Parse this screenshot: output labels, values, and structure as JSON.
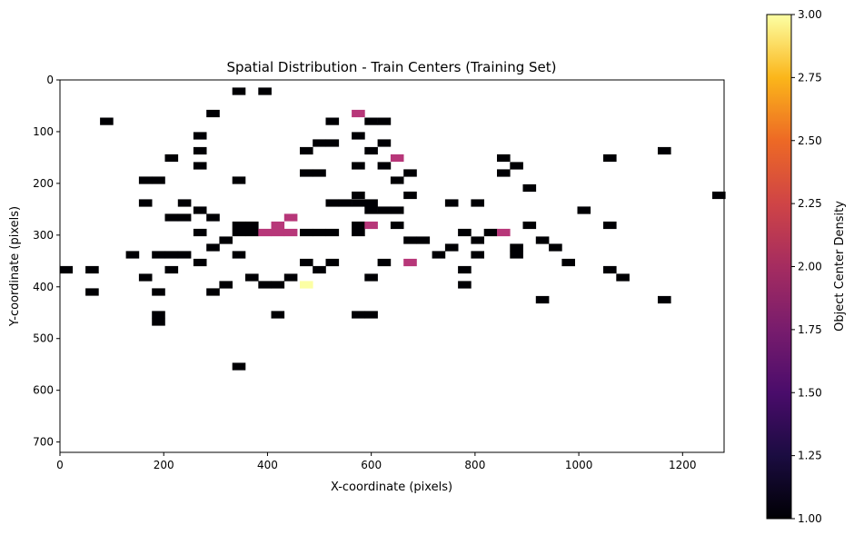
{
  "chart_data": {
    "type": "heatmap",
    "title": "Spatial Distribution - Train Centers (Training Set)",
    "xlabel": "X-coordinate (pixels)",
    "ylabel": "Y-coordinate (pixels)",
    "colorbar_label": "Object Center Density",
    "xlim": [
      0,
      1280
    ],
    "ylim": [
      720,
      0
    ],
    "x_ticks": [
      0,
      200,
      400,
      600,
      800,
      1000,
      1200
    ],
    "y_ticks": [
      0,
      100,
      200,
      300,
      400,
      500,
      600,
      700
    ],
    "colorbar_ticks": [
      "1.00",
      "1.25",
      "1.50",
      "1.75",
      "2.00",
      "2.25",
      "2.50",
      "2.75",
      "3.00"
    ],
    "colorbar_range": [
      1,
      3
    ],
    "colormap": "inferno",
    "grid": false,
    "bin_size": [
      25.6,
      14.4
    ],
    "cells": [
      {
        "x": 345,
        "y": 22,
        "v": 1
      },
      {
        "x": 395,
        "y": 22,
        "v": 1
      },
      {
        "x": 575,
        "y": 65,
        "v": 2
      },
      {
        "x": 90,
        "y": 80,
        "v": 1
      },
      {
        "x": 295,
        "y": 65,
        "v": 1
      },
      {
        "x": 525,
        "y": 80,
        "v": 1
      },
      {
        "x": 600,
        "y": 80,
        "v": 1
      },
      {
        "x": 625,
        "y": 80,
        "v": 1
      },
      {
        "x": 270,
        "y": 108,
        "v": 1
      },
      {
        "x": 575,
        "y": 108,
        "v": 1
      },
      {
        "x": 500,
        "y": 122,
        "v": 1
      },
      {
        "x": 525,
        "y": 122,
        "v": 1
      },
      {
        "x": 625,
        "y": 122,
        "v": 1
      },
      {
        "x": 270,
        "y": 137,
        "v": 1
      },
      {
        "x": 475,
        "y": 137,
        "v": 1
      },
      {
        "x": 600,
        "y": 137,
        "v": 1
      },
      {
        "x": 1165,
        "y": 137,
        "v": 1
      },
      {
        "x": 215,
        "y": 151,
        "v": 1
      },
      {
        "x": 650,
        "y": 151,
        "v": 2
      },
      {
        "x": 855,
        "y": 151,
        "v": 1
      },
      {
        "x": 1060,
        "y": 151,
        "v": 1
      },
      {
        "x": 270,
        "y": 166,
        "v": 1
      },
      {
        "x": 575,
        "y": 166,
        "v": 1
      },
      {
        "x": 625,
        "y": 166,
        "v": 1
      },
      {
        "x": 880,
        "y": 166,
        "v": 1
      },
      {
        "x": 475,
        "y": 180,
        "v": 1
      },
      {
        "x": 500,
        "y": 180,
        "v": 1
      },
      {
        "x": 675,
        "y": 180,
        "v": 1
      },
      {
        "x": 855,
        "y": 180,
        "v": 1
      },
      {
        "x": 165,
        "y": 194,
        "v": 1
      },
      {
        "x": 190,
        "y": 194,
        "v": 1
      },
      {
        "x": 345,
        "y": 194,
        "v": 1
      },
      {
        "x": 650,
        "y": 194,
        "v": 1
      },
      {
        "x": 905,
        "y": 209,
        "v": 1
      },
      {
        "x": 575,
        "y": 223,
        "v": 1
      },
      {
        "x": 675,
        "y": 223,
        "v": 1
      },
      {
        "x": 1270,
        "y": 223,
        "v": 1
      },
      {
        "x": 165,
        "y": 238,
        "v": 1
      },
      {
        "x": 240,
        "y": 238,
        "v": 1
      },
      {
        "x": 550,
        "y": 238,
        "v": 1
      },
      {
        "x": 575,
        "y": 238,
        "v": 1
      },
      {
        "x": 600,
        "y": 238,
        "v": 1
      },
      {
        "x": 755,
        "y": 238,
        "v": 1
      },
      {
        "x": 805,
        "y": 238,
        "v": 1
      },
      {
        "x": 525,
        "y": 238,
        "v": 1
      },
      {
        "x": 270,
        "y": 252,
        "v": 1
      },
      {
        "x": 600,
        "y": 252,
        "v": 1
      },
      {
        "x": 625,
        "y": 252,
        "v": 1
      },
      {
        "x": 650,
        "y": 252,
        "v": 1
      },
      {
        "x": 1010,
        "y": 252,
        "v": 1
      },
      {
        "x": 215,
        "y": 266,
        "v": 1
      },
      {
        "x": 240,
        "y": 266,
        "v": 1
      },
      {
        "x": 295,
        "y": 266,
        "v": 1
      },
      {
        "x": 445,
        "y": 266,
        "v": 2
      },
      {
        "x": 345,
        "y": 281,
        "v": 1
      },
      {
        "x": 370,
        "y": 281,
        "v": 1
      },
      {
        "x": 420,
        "y": 281,
        "v": 2
      },
      {
        "x": 575,
        "y": 281,
        "v": 1
      },
      {
        "x": 600,
        "y": 281,
        "v": 2
      },
      {
        "x": 650,
        "y": 281,
        "v": 1
      },
      {
        "x": 905,
        "y": 281,
        "v": 1
      },
      {
        "x": 1060,
        "y": 281,
        "v": 1
      },
      {
        "x": 270,
        "y": 295,
        "v": 1
      },
      {
        "x": 345,
        "y": 295,
        "v": 1
      },
      {
        "x": 370,
        "y": 295,
        "v": 1
      },
      {
        "x": 395,
        "y": 295,
        "v": 2
      },
      {
        "x": 420,
        "y": 295,
        "v": 2
      },
      {
        "x": 445,
        "y": 295,
        "v": 2
      },
      {
        "x": 475,
        "y": 295,
        "v": 1
      },
      {
        "x": 500,
        "y": 295,
        "v": 1
      },
      {
        "x": 525,
        "y": 295,
        "v": 1
      },
      {
        "x": 575,
        "y": 295,
        "v": 1
      },
      {
        "x": 780,
        "y": 295,
        "v": 1
      },
      {
        "x": 830,
        "y": 295,
        "v": 1
      },
      {
        "x": 855,
        "y": 295,
        "v": 2
      },
      {
        "x": 320,
        "y": 310,
        "v": 1
      },
      {
        "x": 675,
        "y": 310,
        "v": 1
      },
      {
        "x": 700,
        "y": 310,
        "v": 1
      },
      {
        "x": 805,
        "y": 310,
        "v": 1
      },
      {
        "x": 930,
        "y": 310,
        "v": 1
      },
      {
        "x": 295,
        "y": 324,
        "v": 1
      },
      {
        "x": 755,
        "y": 324,
        "v": 1
      },
      {
        "x": 880,
        "y": 324,
        "v": 1
      },
      {
        "x": 955,
        "y": 324,
        "v": 1
      },
      {
        "x": 140,
        "y": 338,
        "v": 1
      },
      {
        "x": 190,
        "y": 338,
        "v": 1
      },
      {
        "x": 215,
        "y": 338,
        "v": 1
      },
      {
        "x": 240,
        "y": 338,
        "v": 1
      },
      {
        "x": 345,
        "y": 338,
        "v": 1
      },
      {
        "x": 730,
        "y": 338,
        "v": 1
      },
      {
        "x": 805,
        "y": 338,
        "v": 1
      },
      {
        "x": 880,
        "y": 338,
        "v": 1
      },
      {
        "x": 270,
        "y": 353,
        "v": 1
      },
      {
        "x": 475,
        "y": 353,
        "v": 1
      },
      {
        "x": 525,
        "y": 353,
        "v": 1
      },
      {
        "x": 625,
        "y": 353,
        "v": 1
      },
      {
        "x": 675,
        "y": 353,
        "v": 2
      },
      {
        "x": 980,
        "y": 353,
        "v": 1
      },
      {
        "x": 12,
        "y": 367,
        "v": 1
      },
      {
        "x": 62,
        "y": 367,
        "v": 1
      },
      {
        "x": 215,
        "y": 367,
        "v": 1
      },
      {
        "x": 500,
        "y": 367,
        "v": 1
      },
      {
        "x": 780,
        "y": 367,
        "v": 1
      },
      {
        "x": 1060,
        "y": 367,
        "v": 1
      },
      {
        "x": 165,
        "y": 382,
        "v": 1
      },
      {
        "x": 370,
        "y": 382,
        "v": 1
      },
      {
        "x": 445,
        "y": 382,
        "v": 1
      },
      {
        "x": 600,
        "y": 382,
        "v": 1
      },
      {
        "x": 1085,
        "y": 382,
        "v": 1
      },
      {
        "x": 320,
        "y": 396,
        "v": 1
      },
      {
        "x": 395,
        "y": 396,
        "v": 1
      },
      {
        "x": 420,
        "y": 396,
        "v": 1
      },
      {
        "x": 475,
        "y": 396,
        "v": 3
      },
      {
        "x": 780,
        "y": 396,
        "v": 1
      },
      {
        "x": 62,
        "y": 410,
        "v": 1
      },
      {
        "x": 190,
        "y": 410,
        "v": 1
      },
      {
        "x": 295,
        "y": 410,
        "v": 1
      },
      {
        "x": 930,
        "y": 425,
        "v": 1
      },
      {
        "x": 1165,
        "y": 425,
        "v": 1
      },
      {
        "x": 190,
        "y": 454,
        "v": 1
      },
      {
        "x": 420,
        "y": 454,
        "v": 1
      },
      {
        "x": 575,
        "y": 454,
        "v": 1
      },
      {
        "x": 600,
        "y": 454,
        "v": 1
      },
      {
        "x": 190,
        "y": 468,
        "v": 1
      },
      {
        "x": 345,
        "y": 554,
        "v": 1
      }
    ]
  }
}
